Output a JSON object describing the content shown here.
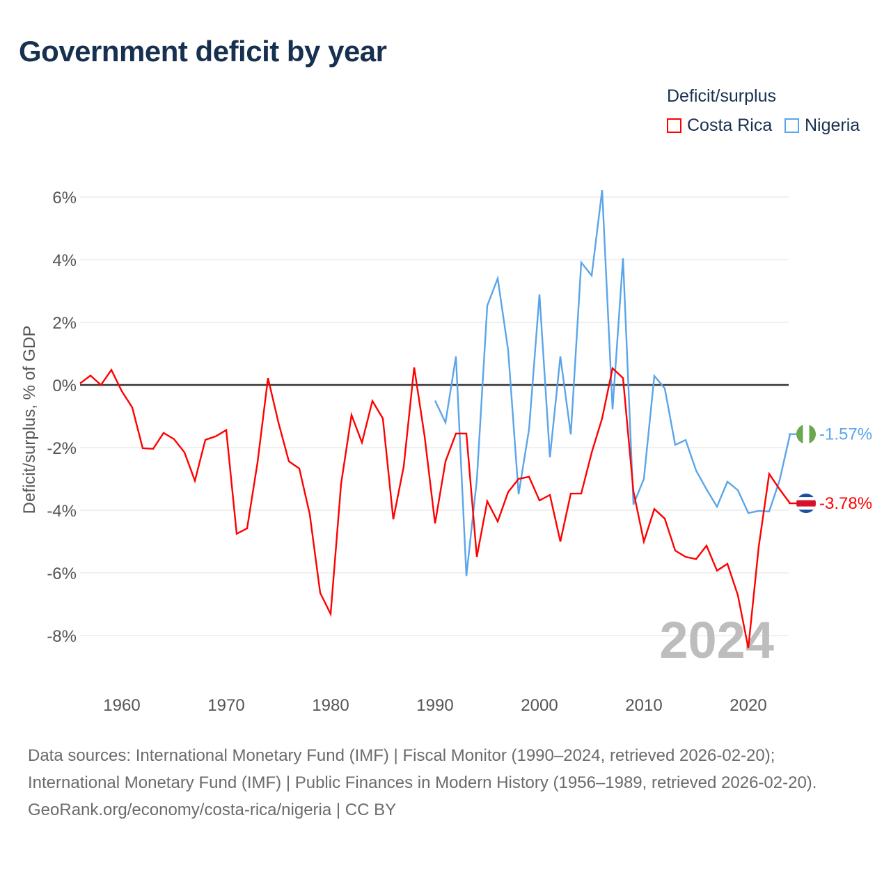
{
  "title": "Government deficit by year",
  "legend": {
    "title": "Deficit/surplus",
    "items": [
      {
        "label": "Costa Rica",
        "color": "#ff0000"
      },
      {
        "label": "Nigeria",
        "color": "#5aa5ea"
      }
    ]
  },
  "watermark_year": "2024",
  "footer": {
    "sources": "Data sources: International Monetary Fund (IMF) | Fiscal Monitor (1990–2024, retrieved 2026-02-20); International Monetary Fund (IMF) | Public Finances in Modern History (1956–1989, retrieved 2026-02-20).",
    "credit": "GeoRank.org/economy/costa-rica/nigeria | CC BY"
  },
  "chart_data": {
    "type": "line",
    "title": "Government deficit by year",
    "xlabel": "",
    "ylabel": "Deficit/surplus, % of GDP",
    "xlim": [
      1956,
      2024
    ],
    "ylim": [
      -9.5,
      6.5
    ],
    "x_ticks": [
      1960,
      1970,
      1980,
      1990,
      2000,
      2010,
      2020
    ],
    "x_tick_labels": [
      "1960",
      "1970",
      "1980",
      "1990",
      "2000",
      "2010",
      "2020"
    ],
    "y_ticks": [
      6,
      4,
      2,
      0,
      -2,
      -4,
      -6,
      -8
    ],
    "y_tick_labels": [
      "6%",
      "4%",
      "2%",
      "0%",
      "-2%",
      "-4%",
      "-6%",
      "-8%"
    ],
    "grid": true,
    "legend_position": "top-right",
    "series": [
      {
        "name": "Costa Rica",
        "color": "#ff0000",
        "start_year": 1956,
        "end_label": "-3.78%",
        "values": [
          0.05,
          0.3,
          0.0,
          0.48,
          -0.2,
          -0.72,
          -2.02,
          -2.04,
          -1.53,
          -1.73,
          -2.15,
          -3.06,
          -1.75,
          -1.64,
          -1.44,
          -4.75,
          -4.58,
          -2.47,
          0.22,
          -1.2,
          -2.44,
          -2.67,
          -4.13,
          -6.64,
          -7.31,
          -3.16,
          -0.96,
          -1.84,
          -0.51,
          -1.07,
          -4.29,
          -2.6,
          0.56,
          -1.64,
          -4.42,
          -2.44,
          -1.55,
          -1.55,
          -5.49,
          -3.71,
          -4.36,
          -3.42,
          -3.0,
          -2.93,
          -3.69,
          -3.51,
          -5.0,
          -3.47,
          -3.47,
          -2.16,
          -1.07,
          0.53,
          0.22,
          -3.4,
          -5.0,
          -3.96,
          -4.27,
          -5.29,
          -5.49,
          -5.56,
          -5.13,
          -5.93,
          -5.71,
          -6.71,
          -8.4,
          -5.16,
          -2.84,
          -3.33,
          -3.78
        ]
      },
      {
        "name": "Nigeria",
        "color": "#5aa5ea",
        "start_year": 1990,
        "end_label": "-1.57%",
        "values": [
          -0.5,
          -1.2,
          0.91,
          -6.1,
          -3.04,
          2.53,
          3.4,
          1.11,
          -3.49,
          -1.42,
          2.89,
          -2.31,
          0.91,
          -1.58,
          3.91,
          3.49,
          6.22,
          -0.78,
          4.04,
          -3.82,
          -3.0,
          0.29,
          -0.11,
          -1.91,
          -1.76,
          -2.73,
          -3.33,
          -3.89,
          -3.09,
          -3.36,
          -4.09,
          -4.02,
          -4.04,
          -3.04,
          -1.57
        ]
      }
    ]
  }
}
